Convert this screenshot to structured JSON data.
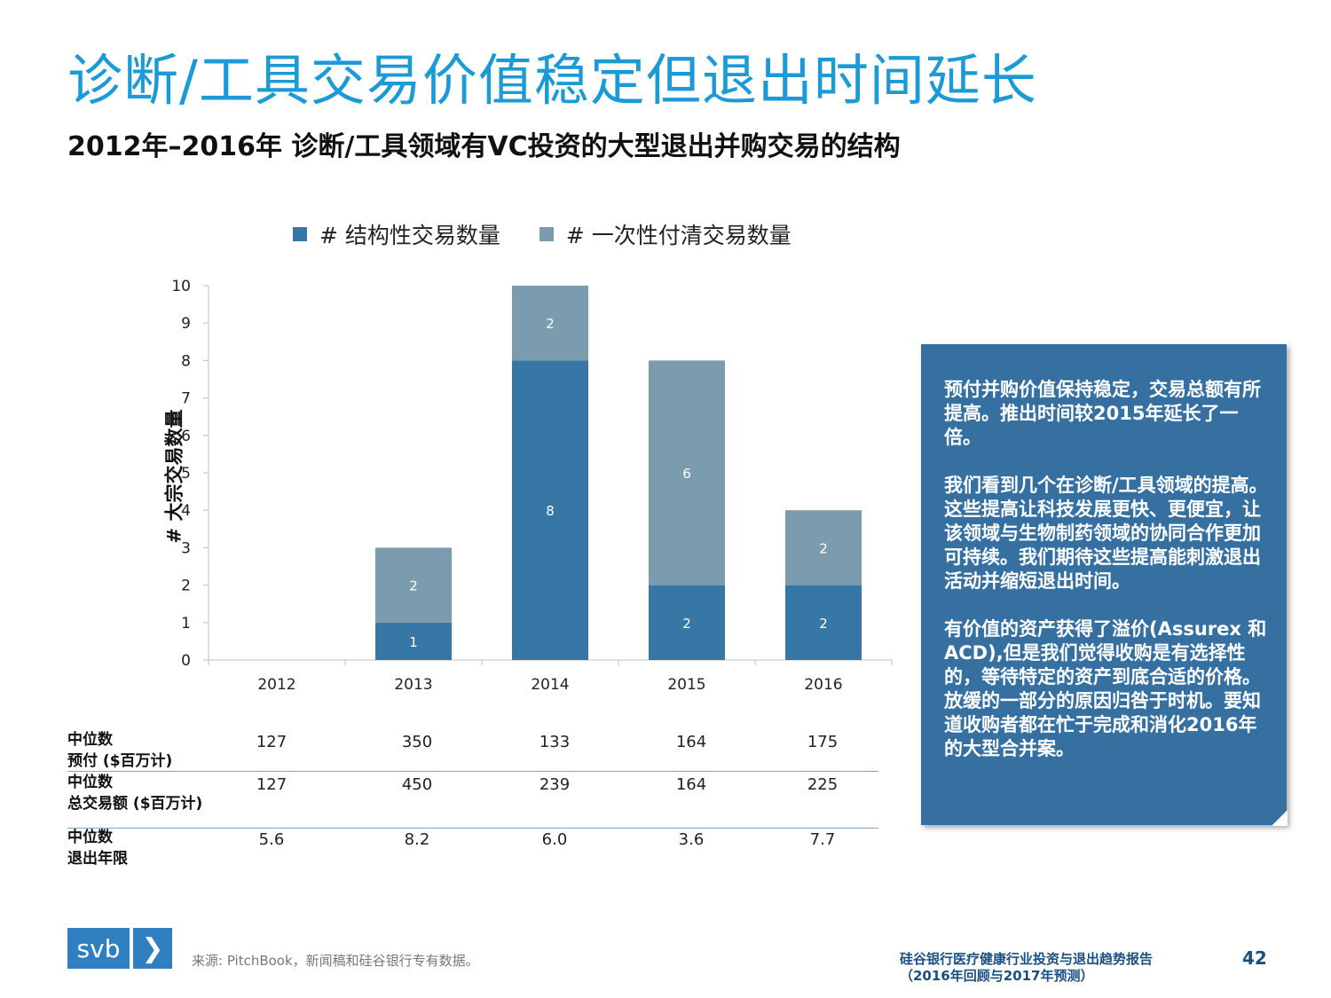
{
  "title": "诊断/工具交易价值稳定但退出时间延长",
  "subtitle": "2012年–2016年 诊断/工具领域有VC投资的大型退出并购交易的结构",
  "chart_data": {
    "type": "bar",
    "stacked": true,
    "categories": [
      "2012",
      "2013",
      "2014",
      "2015",
      "2016"
    ],
    "series": [
      {
        "name": "# 结构性交易数量",
        "color": "#3777a5",
        "values": [
          0,
          1,
          8,
          2,
          2
        ]
      },
      {
        "name": "# 一次性付清交易数量",
        "color": "#7b9bae",
        "values": [
          0,
          2,
          2,
          6,
          2
        ]
      }
    ],
    "ylabel": "# 大宗交易数量",
    "ylim": [
      0,
      10
    ],
    "yticks": [
      0,
      1,
      2,
      3,
      4,
      5,
      6,
      7,
      8,
      9,
      10
    ],
    "legend_position": "top"
  },
  "table": {
    "rows": [
      {
        "label_line1": "中位数",
        "label_line2": "预付 ($百万计)",
        "values": [
          "127",
          "350",
          "133",
          "164",
          "175"
        ]
      },
      {
        "label_line1": "中位数",
        "label_line2": "总交易额 ($百万计)",
        "values": [
          "127",
          "450",
          "239",
          "164",
          "225"
        ]
      },
      {
        "label_line1": "中位数",
        "label_line2": "退出年限",
        "values": [
          "5.6",
          "8.2",
          "6.0",
          "3.6",
          "7.7"
        ]
      }
    ]
  },
  "callout": {
    "paragraphs": [
      "预付并购价值保持稳定，交易总额有所提高。推出时间较2015年延长了一倍。",
      "我们看到几个在诊断/工具领域的提高。这些提高让科技发展更快、更便宜，让该领域与生物制药领域的协同合作更加可持续。我们期待这些提高能刺激退出活动并缩短退出时间。",
      "有价值的资产获得了溢价(Assurex 和 ACD),但是我们觉得收购是有选择性的，等待特定的资产到底合适的价格。放缓的一部分的原因归咎于时机。要知道收购者都在忙于完成和消化2016年的大型合并案。"
    ]
  },
  "footer": {
    "logo_text": "svb",
    "logo_chevron": "❯",
    "source": "来源: PitchBook，新闻稿和硅谷银行专有数据。",
    "report_line1": "硅谷银行医疗健康行业投资与退出趋势报告",
    "report_line2": "（2016年回顾与2017年预测）",
    "page_number": "42"
  }
}
